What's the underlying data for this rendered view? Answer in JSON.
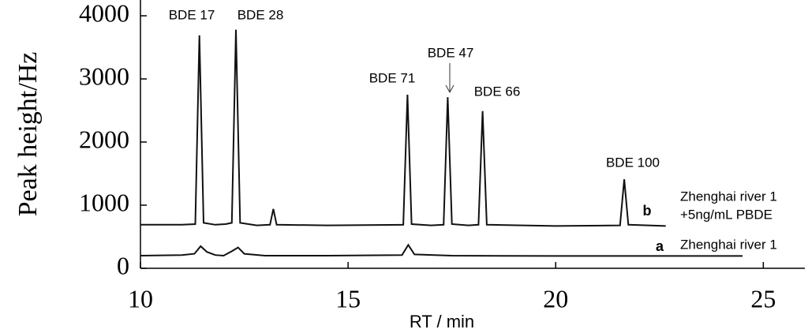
{
  "chart_data": {
    "type": "line",
    "xlabel": "RT / min",
    "ylabel": "Peak height/Hz",
    "xlim": [
      10,
      26
    ],
    "ylim": [
      0,
      4250
    ],
    "xticks": [
      10,
      15,
      20,
      25
    ],
    "yticks": [
      0,
      1000,
      2000,
      3000,
      4000
    ],
    "annotations": [
      "BDE 17",
      "BDE 28",
      "BDE 71",
      "BDE 47",
      "BDE 66",
      "BDE 100"
    ],
    "series": [
      {
        "label": "b",
        "name": [
          "Zhenghai river 1",
          "+5ng/mL PBDE"
        ],
        "color": "#111111",
        "x": [
          10,
          11.0,
          11.32,
          11.42,
          11.52,
          11.8,
          12.05,
          12.2,
          12.3,
          12.4,
          12.8,
          13.12,
          13.2,
          13.28,
          14.5,
          16.33,
          16.43,
          16.53,
          17.0,
          17.3,
          17.4,
          17.5,
          17.9,
          18.14,
          18.24,
          18.34,
          20.0,
          21.55,
          21.65,
          21.75,
          22.65
        ],
        "values": [
          690,
          690,
          700,
          3690,
          720,
          690,
          700,
          720,
          3780,
          720,
          680,
          690,
          940,
          690,
          680,
          690,
          2750,
          700,
          680,
          690,
          2710,
          700,
          680,
          690,
          2490,
          690,
          670,
          680,
          1410,
          690,
          670
        ]
      },
      {
        "label": "a",
        "name": [
          "Zhenghai river 1"
        ],
        "color": "#111111",
        "x": [
          10,
          11.0,
          11.3,
          11.45,
          11.6,
          11.8,
          12.0,
          12.2,
          12.35,
          12.5,
          13.0,
          14.5,
          16.3,
          16.45,
          16.6,
          17.5,
          20.0,
          24.5
        ],
        "values": [
          200,
          210,
          230,
          350,
          260,
          210,
          200,
          270,
          330,
          230,
          200,
          200,
          210,
          370,
          220,
          200,
          195,
          195
        ]
      }
    ]
  }
}
